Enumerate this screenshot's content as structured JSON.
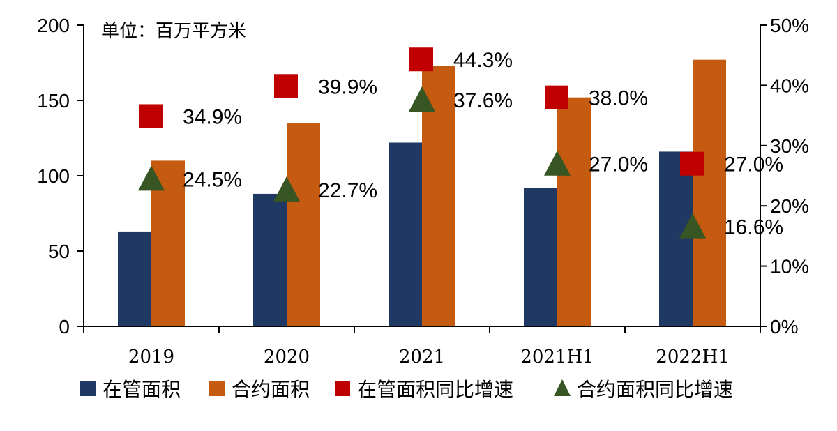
{
  "chart_data": {
    "type": "bar",
    "unit_label": "单位：百万平方米",
    "categories": [
      "2019",
      "2020",
      "2021",
      "2021H1",
      "2022H1"
    ],
    "y_left": {
      "ylim": [
        0,
        200
      ],
      "ticks": [
        "0",
        "50",
        "100",
        "150",
        "200"
      ],
      "tick_values": [
        0,
        50,
        100,
        150,
        200
      ]
    },
    "y_right": {
      "ylim": [
        0,
        50
      ],
      "ticks": [
        "0%",
        "10%",
        "20%",
        "30%",
        "40%",
        "50%"
      ],
      "tick_values": [
        0,
        10,
        20,
        30,
        40,
        50
      ]
    },
    "series": [
      {
        "name": "在管面积",
        "kind": "bar",
        "axis": "left",
        "color": "#1F3864",
        "values": [
          63,
          88,
          122,
          92,
          116
        ]
      },
      {
        "name": "合约面积",
        "kind": "bar",
        "axis": "left",
        "color": "#C55A11",
        "values": [
          110,
          135,
          173,
          152,
          177
        ]
      },
      {
        "name": "在管面积同比增速",
        "kind": "marker-square",
        "axis": "right",
        "color": "#C00000",
        "values": [
          34.9,
          39.9,
          44.3,
          38.0,
          27.0
        ],
        "labels": [
          "34.9%",
          "39.9%",
          "44.3%",
          "38.0%",
          "27.0%"
        ]
      },
      {
        "name": "合约面积同比增速",
        "kind": "marker-triangle",
        "axis": "right",
        "color": "#375623",
        "values": [
          24.5,
          22.7,
          37.6,
          27.0,
          16.6
        ],
        "labels": [
          "24.5%",
          "22.7%",
          "37.6%",
          "27.0%",
          "16.6%"
        ]
      }
    ],
    "legend_position": "bottom",
    "grid": false
  }
}
